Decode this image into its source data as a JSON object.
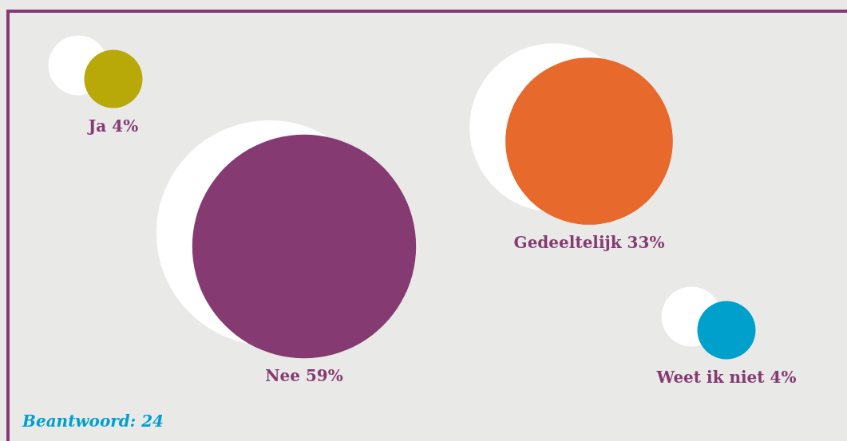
{
  "chart_data": {
    "type": "other",
    "categories": [
      "Ja",
      "Nee",
      "Gedeeltelijk",
      "Weet ik niet"
    ],
    "values": [
      4,
      59,
      33,
      4
    ],
    "value_labels": [
      "4%",
      "59%",
      "33%",
      "4%"
    ],
    "colors": [
      "#b8a909",
      "#853b72",
      "#e8692c",
      "#00a0cc"
    ],
    "annotations": [
      "Beantwoord: 24"
    ]
  }
}
